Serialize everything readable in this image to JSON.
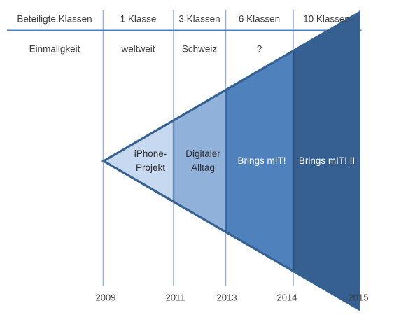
{
  "table": {
    "row1": {
      "header": "Beteiligte Klassen",
      "cells": [
        "1 Klasse",
        "3 Klassen",
        "6 Klassen",
        "10 Klassen"
      ]
    },
    "row2": {
      "header": "Einmaligkeit",
      "cells": [
        "weltweit",
        "Schweiz",
        "?",
        ""
      ]
    }
  },
  "funnel": {
    "segments": [
      {
        "name": "iphone-projekt",
        "lines": [
          "iPhone-",
          "Projekt"
        ],
        "fill": "#c6d9f1",
        "text_color": "#2f2f2f"
      },
      {
        "name": "digitaler-alltag",
        "lines": [
          "Digitaler",
          "Alltag"
        ],
        "fill": "#8fb1da",
        "text_color": "#2f2f2f"
      },
      {
        "name": "brings-mit",
        "lines": [
          "Brings mIT!"
        ],
        "fill": "#4f81bd",
        "text_color": "#ffffff"
      },
      {
        "name": "brings-mit-2",
        "lines": [
          "Brings mIT! II"
        ],
        "fill": "#366092",
        "text_color": "#ffffff"
      }
    ],
    "border_color": "#36618f",
    "divider_color": "rgba(30,62,105,0.5)"
  },
  "timeline": {
    "years": [
      "2009",
      "2011",
      "2013",
      "2014",
      "2015"
    ]
  },
  "grid": {
    "line_color": "#95b3d7",
    "header_rule_color": "#4f81bd"
  }
}
